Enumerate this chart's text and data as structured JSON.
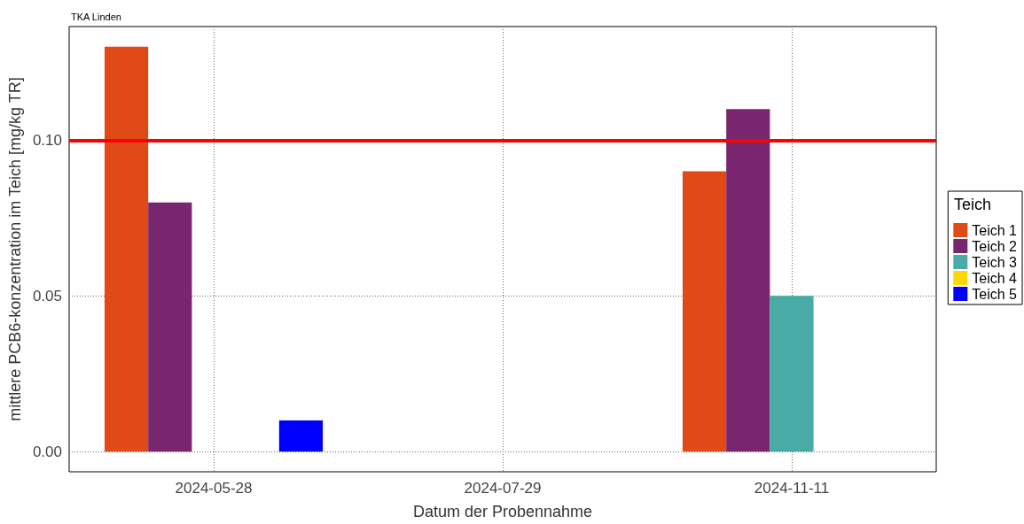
{
  "chart_data": {
    "type": "bar",
    "title": "TKA Linden",
    "xlabel": "Datum der Probennahme",
    "ylabel": "mittlere PCB6-konzentration im Teich [mg/kg TR]",
    "legend_title": "Teich",
    "categories": [
      "2024-05-28",
      "2024-07-29",
      "2024-11-11"
    ],
    "series": [
      {
        "name": "Teich 1",
        "color": "#e04a17",
        "values": [
          0.13,
          null,
          0.09
        ]
      },
      {
        "name": "Teich 2",
        "color": "#78276e",
        "values": [
          0.08,
          null,
          0.11
        ]
      },
      {
        "name": "Teich 3",
        "color": "#48aba6",
        "values": [
          null,
          null,
          0.05
        ]
      },
      {
        "name": "Teich 4",
        "color": "#ffd700",
        "values": [
          null,
          null,
          null
        ]
      },
      {
        "name": "Teich 5",
        "color": "#0000ff",
        "values": [
          0.01,
          null,
          null
        ]
      }
    ],
    "ylim": [
      -0.0065,
      0.1365
    ],
    "yticks": [
      {
        "value": 0,
        "label": "0.00"
      },
      {
        "value": 0.05,
        "label": "0.05"
      },
      {
        "value": 0.1,
        "label": "0.10"
      }
    ],
    "ref_lines": [
      {
        "axis": "y",
        "value": 0.1,
        "color": "#ff0000"
      }
    ],
    "grid": true,
    "legend": "right"
  }
}
